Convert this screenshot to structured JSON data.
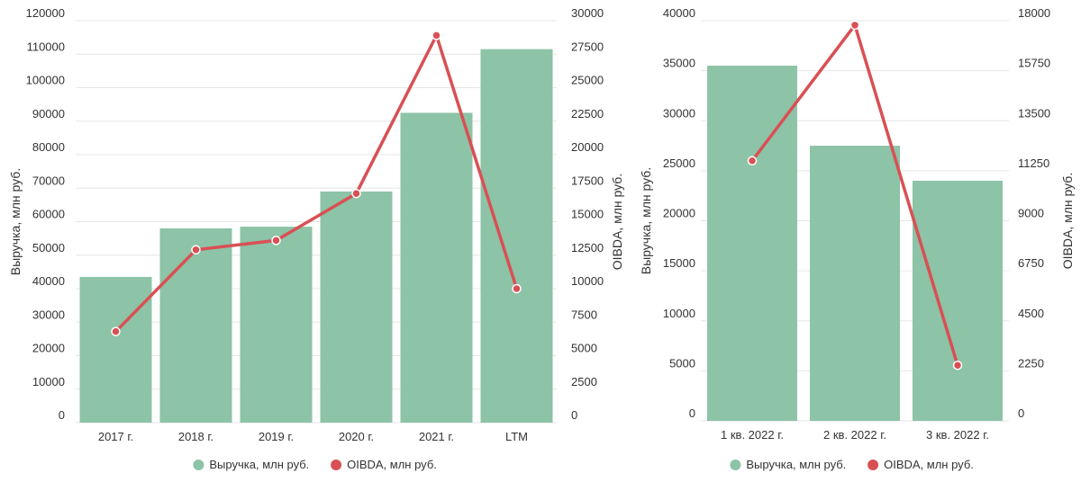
{
  "chart_data": [
    {
      "type": "bar",
      "title": "",
      "categories": [
        "2017 г.",
        "2018 г.",
        "2019 г.",
        "2020 г.",
        "2021 г.",
        "LTM"
      ],
      "series": [
        {
          "name": "Выручка, млн руб.",
          "type": "bar",
          "axis": "left",
          "color": "#8dc3a7",
          "values": [
            43500,
            58000,
            58500,
            69000,
            92500,
            111500
          ]
        },
        {
          "name": "OIBDA, млн руб.",
          "type": "line",
          "axis": "right",
          "color": "#d95054",
          "values": [
            6800,
            12900,
            13600,
            17100,
            28900,
            10000
          ]
        }
      ],
      "ylabel": "Выручка, млн руб.",
      "y2label": "OIBDA, млн руб.",
      "ylim": [
        0,
        120000
      ],
      "y2lim": [
        0,
        30000
      ],
      "yticks": [
        "0",
        "10000",
        "20000",
        "30000",
        "40000",
        "50000",
        "60000",
        "70000",
        "80000",
        "90000",
        "100000",
        "110000",
        "120000"
      ],
      "y2ticks": [
        "0",
        "2500",
        "5000",
        "7500",
        "10000",
        "12500",
        "15000",
        "17500",
        "20000",
        "22500",
        "25000",
        "27500",
        "30000"
      ],
      "grid": true,
      "legend": "bottom-center"
    },
    {
      "type": "bar",
      "title": "",
      "categories": [
        "1 кв. 2022 г.",
        "2 кв. 2022 г.",
        "3 кв. 2022 г."
      ],
      "series": [
        {
          "name": "Выручка, млн руб.",
          "type": "bar",
          "axis": "left",
          "color": "#8dc3a7",
          "values": [
            35500,
            27500,
            24000
          ]
        },
        {
          "name": "OIBDA, млн руб.",
          "type": "line",
          "axis": "right",
          "color": "#d95054",
          "values": [
            11700,
            17800,
            2500
          ]
        }
      ],
      "ylabel": "Выручка, млн руб.",
      "y2label": "OIBDA, млн руб.",
      "ylim": [
        0,
        40000
      ],
      "y2lim": [
        0,
        18000
      ],
      "yticks": [
        "0",
        "5000",
        "10000",
        "15000",
        "20000",
        "25000",
        "30000",
        "35000",
        "40000"
      ],
      "y2ticks": [
        "0",
        "2250",
        "4500",
        "6750",
        "9000",
        "11250",
        "13500",
        "15750",
        "18000"
      ],
      "grid": true,
      "legend": "bottom-center"
    }
  ]
}
